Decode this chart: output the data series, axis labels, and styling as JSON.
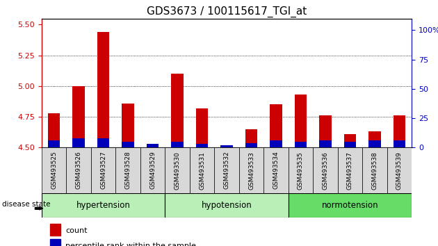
{
  "title": "GDS3673 / 100115617_TGI_at",
  "samples": [
    "GSM493525",
    "GSM493526",
    "GSM493527",
    "GSM493528",
    "GSM493529",
    "GSM493530",
    "GSM493531",
    "GSM493532",
    "GSM493533",
    "GSM493534",
    "GSM493535",
    "GSM493536",
    "GSM493537",
    "GSM493538",
    "GSM493539"
  ],
  "red_values": [
    4.78,
    5.0,
    5.44,
    4.86,
    4.51,
    5.1,
    4.82,
    4.51,
    4.65,
    4.85,
    4.93,
    4.76,
    4.61,
    4.63,
    4.76
  ],
  "blue_pct": [
    6,
    8,
    8,
    5,
    3,
    5,
    3,
    2,
    4,
    6,
    5,
    6,
    5,
    6,
    6
  ],
  "group_info": [
    {
      "label": "hypertension",
      "start": 0,
      "end": 5,
      "color": "#b8f0b8"
    },
    {
      "label": "hypotension",
      "start": 5,
      "end": 10,
      "color": "#b8f0b8"
    },
    {
      "label": "normotension",
      "start": 10,
      "end": 15,
      "color": "#66dd66"
    }
  ],
  "ylim_left": [
    4.5,
    5.55
  ],
  "yticks_left": [
    4.5,
    4.75,
    5.0,
    5.25,
    5.5
  ],
  "ylim_right": [
    0,
    110
  ],
  "yticks_right": [
    0,
    25,
    50,
    75,
    100
  ],
  "ytick_labels_right": [
    "0",
    "25",
    "50",
    "75",
    "100%"
  ],
  "red_color": "#cc0000",
  "blue_color": "#0000bb",
  "tick_color_left": "#cc0000",
  "tick_color_right": "#0000bb",
  "bar_base": 4.5,
  "bar_width": 0.5,
  "sample_box_color": "#d8d8d8",
  "bg_color": "#ffffff"
}
